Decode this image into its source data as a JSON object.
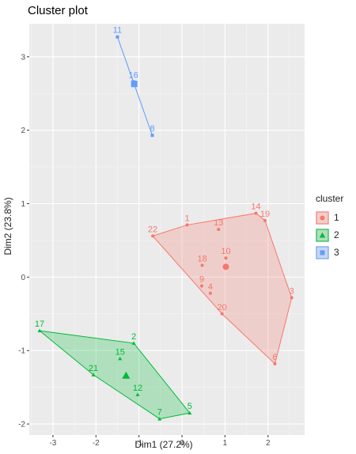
{
  "chart_data": {
    "type": "scatter",
    "title": "Cluster plot",
    "xlabel": "Dim1 (27.2%)",
    "ylabel": "Dim2 (23.8%)",
    "xlim": [
      -3.55,
      2.85
    ],
    "ylim": [
      -2.15,
      3.45
    ],
    "xticks": [
      -3,
      -2,
      -1,
      0,
      1,
      2
    ],
    "yticks": [
      -2,
      -1,
      0,
      1,
      2,
      3
    ],
    "xtick_labels": [
      "-3",
      "-2",
      "-1",
      "0",
      "1",
      "2"
    ],
    "ytick_labels": [
      "-2",
      "-1",
      "0",
      "1",
      "2",
      "3"
    ],
    "grid": true,
    "legend_position": "right",
    "legend_title": "cluster",
    "series": [
      {
        "name": "1",
        "color": "#F8766D",
        "shape": "circle",
        "hull": true,
        "points": [
          {
            "label": "1",
            "x": 0.12,
            "y": 0.71
          },
          {
            "label": "13",
            "x": 0.85,
            "y": 0.65
          },
          {
            "label": "14",
            "x": 1.72,
            "y": 0.87
          },
          {
            "label": "19",
            "x": 1.93,
            "y": 0.77
          },
          {
            "label": "22",
            "x": -0.68,
            "y": 0.56
          },
          {
            "label": "10",
            "x": 1.02,
            "y": 0.26
          },
          {
            "label": "18",
            "x": 0.47,
            "y": 0.16
          },
          {
            "label": "9",
            "x": 0.46,
            "y": -0.12
          },
          {
            "label": "4",
            "x": 0.66,
            "y": -0.22
          },
          {
            "label": "3",
            "x": 2.55,
            "y": -0.28
          },
          {
            "label": "20",
            "x": 0.93,
            "y": -0.5
          },
          {
            "label": "6",
            "x": 2.16,
            "y": -1.18
          }
        ],
        "centroid": {
          "x": 1.02,
          "y": 0.14
        }
      },
      {
        "name": "2",
        "color": "#00BA38",
        "shape": "triangle",
        "hull": true,
        "points": [
          {
            "label": "17",
            "x": -3.31,
            "y": -0.73
          },
          {
            "label": "2",
            "x": -1.12,
            "y": -0.9
          },
          {
            "label": "15",
            "x": -1.44,
            "y": -1.11
          },
          {
            "label": "21",
            "x": -2.06,
            "y": -1.33
          },
          {
            "label": "12",
            "x": -1.03,
            "y": -1.6
          },
          {
            "label": "7",
            "x": -0.52,
            "y": -1.93
          },
          {
            "label": "5",
            "x": 0.18,
            "y": -1.85
          }
        ],
        "centroid": {
          "x": -1.3,
          "y": -1.34
        }
      },
      {
        "name": "3",
        "color": "#619CFF",
        "shape": "square",
        "hull": true,
        "points": [
          {
            "label": "11",
            "x": -1.5,
            "y": 3.27
          },
          {
            "label": "16",
            "x": -1.13,
            "y": 2.66
          },
          {
            "label": "8",
            "x": -0.69,
            "y": 1.93
          }
        ],
        "centroid": {
          "x": -1.11,
          "y": 2.63
        }
      }
    ]
  }
}
